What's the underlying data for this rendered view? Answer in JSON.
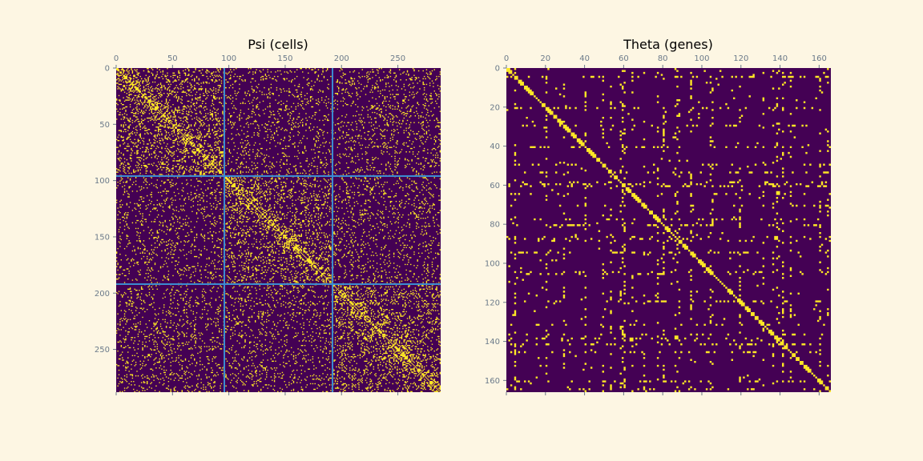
{
  "chart_data": [
    {
      "type": "heatmap",
      "title": "Psi (cells)",
      "n": 288,
      "xlim": [
        0,
        288
      ],
      "ylim": [
        288,
        0
      ],
      "x_ticks": [
        "0",
        "50",
        "100",
        "150",
        "200",
        "250"
      ],
      "y_ticks": [
        "0",
        "50",
        "100",
        "150",
        "200",
        "250"
      ],
      "x_tick_values": [
        0,
        50,
        100,
        150,
        200,
        250
      ],
      "y_tick_values": [
        0,
        50,
        100,
        150,
        200,
        250
      ],
      "block_boundaries": [
        96,
        192
      ],
      "boundary_color": "#3b8bd1",
      "colors": {
        "zero": "#440154",
        "one": "#fde725"
      },
      "values": "binary adjacency matrix; dense yellow near diagonal within blocks [0-96), [96-192), [192-288); sparser off-diagonal"
    },
    {
      "type": "heatmap",
      "title": "Theta (genes)",
      "n": 166,
      "xlim": [
        0,
        166
      ],
      "ylim": [
        166,
        0
      ],
      "x_ticks": [
        "0",
        "20",
        "40",
        "60",
        "80",
        "100",
        "120",
        "140",
        "160"
      ],
      "y_ticks": [
        "0",
        "20",
        "40",
        "60",
        "80",
        "100",
        "120",
        "140",
        "160"
      ],
      "x_tick_values": [
        0,
        20,
        40,
        60,
        80,
        100,
        120,
        140,
        160
      ],
      "y_tick_values": [
        0,
        20,
        40,
        60,
        80,
        100,
        120,
        140,
        160
      ],
      "colors": {
        "zero": "#440154",
        "one": "#fde725"
      },
      "values": "sparse binary matrix with full diagonal and recurring hub rows/columns"
    }
  ]
}
